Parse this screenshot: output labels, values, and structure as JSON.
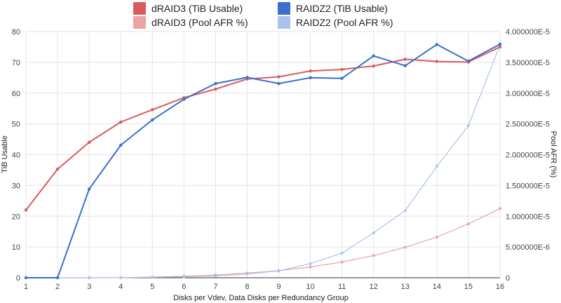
{
  "chart_data": {
    "type": "line",
    "xlabel": "Disks per Vdev, Data Disks per Redundancy Group",
    "ylabel_left": "TiB Usable",
    "ylabel_right": "Pool AFR (%)",
    "x": [
      1,
      2,
      3,
      4,
      5,
      6,
      7,
      8,
      9,
      10,
      11,
      12,
      13,
      14,
      15,
      16
    ],
    "xlim": [
      1,
      16
    ],
    "ylim_left": [
      0,
      80
    ],
    "ylim_right": [
      0,
      4e-05
    ],
    "left_ticks": [
      "0",
      "10",
      "20",
      "30",
      "40",
      "50",
      "60",
      "70",
      "80"
    ],
    "right_ticks": [
      "0",
      "5.000000E-6",
      "1.000000E-5",
      "1.500000E-5",
      "2.000000E-5",
      "2.500000E-5",
      "3.000000E-5",
      "3.500000E-5",
      "4.000000E-5"
    ],
    "grid": true,
    "legend_position": "top",
    "series": [
      {
        "name": "dRAID3 (TiB Usable)",
        "axis": "left",
        "color": "#dc5a5a",
        "values": [
          22.0,
          35.3,
          44.0,
          50.6,
          54.6,
          58.5,
          61.3,
          64.6,
          65.3,
          67.2,
          67.7,
          68.8,
          71.0,
          70.3,
          70.1,
          75.0
        ]
      },
      {
        "name": "RAIDZ2 (TiB Usable)",
        "axis": "left",
        "color": "#3a6fcf",
        "values": [
          0.0,
          0.0,
          28.8,
          43.1,
          51.3,
          58.0,
          63.1,
          65.1,
          63.1,
          65.0,
          64.8,
          72.1,
          68.9,
          75.8,
          70.4,
          75.9
        ]
      },
      {
        "name": "dRAID3 (Pool AFR %)",
        "axis": "right",
        "color": "#eba4a4",
        "values": [
          0.0,
          0.0,
          0.0,
          2e-08,
          1e-07,
          2.5e-07,
          4.5e-07,
          7.5e-07,
          1.15e-06,
          1.75e-06,
          2.55e-06,
          3.6e-06,
          4.95e-06,
          6.6e-06,
          8.75e-06,
          1.125e-05
        ]
      },
      {
        "name": "RAIDZ2 (Pool AFR %)",
        "axis": "right",
        "color": "#a9c3ee",
        "values": [
          0.0,
          0.0,
          0.0,
          2e-08,
          8e-08,
          1.5e-07,
          3e-07,
          6e-07,
          1.1e-06,
          2.3e-06,
          4e-06,
          7.3e-06,
          1.09e-05,
          1.81e-05,
          2.47e-05,
          3.78e-05
        ]
      }
    ]
  }
}
